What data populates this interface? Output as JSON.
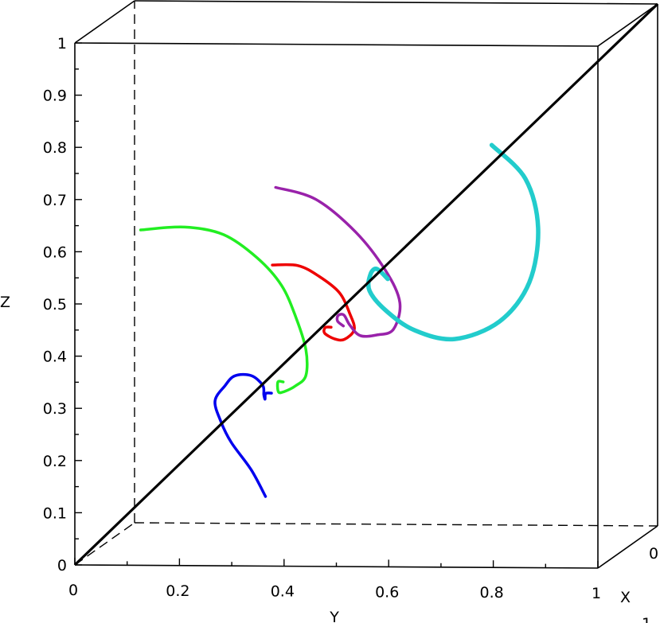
{
  "chart_data": {
    "type": "line",
    "projection": "3d",
    "title": "",
    "xlabel": "X",
    "ylabel": "Y",
    "zlabel": "Z",
    "xlim": [
      0,
      1
    ],
    "ylim": [
      0,
      1
    ],
    "zlim": [
      0,
      1
    ],
    "grid": false,
    "y_ticks": [
      "0",
      "0.2",
      "0.4",
      "0.6",
      "0.8",
      "1"
    ],
    "z_ticks": [
      "0",
      "0.1",
      "0.2",
      "0.3",
      "0.4",
      "0.5",
      "0.6",
      "0.7",
      "0.8",
      "0.9",
      "1"
    ],
    "x_ticks": [
      "0"
    ],
    "x_label_fragment": "1",
    "diagonal": {
      "color": "#000000",
      "points": [
        [
          0,
          0,
          0
        ],
        [
          1,
          1,
          1
        ]
      ]
    },
    "series": [
      {
        "color": "#0000ee",
        "points": [
          [
            0.04,
            0.36,
            0.13
          ],
          [
            0.06,
            0.33,
            0.18
          ],
          [
            0.08,
            0.29,
            0.23
          ],
          [
            0.08,
            0.27,
            0.27
          ],
          [
            0.07,
            0.26,
            0.31
          ],
          [
            0.06,
            0.28,
            0.34
          ],
          [
            0.05,
            0.3,
            0.36
          ],
          [
            0.06,
            0.33,
            0.36
          ],
          [
            0.08,
            0.35,
            0.34
          ],
          [
            0.1,
            0.35,
            0.32
          ],
          [
            0.12,
            0.35,
            0.31
          ],
          [
            0.13,
            0.35,
            0.32
          ],
          [
            0.14,
            0.36,
            0.32
          ]
        ]
      },
      {
        "color": "#22ee22",
        "points": [
          [
            0.4,
            0.08,
            0.61
          ],
          [
            0.35,
            0.17,
            0.62
          ],
          [
            0.3,
            0.25,
            0.61
          ],
          [
            0.25,
            0.32,
            0.57
          ],
          [
            0.22,
            0.37,
            0.52
          ],
          [
            0.2,
            0.4,
            0.46
          ],
          [
            0.19,
            0.42,
            0.4
          ],
          [
            0.19,
            0.42,
            0.35
          ],
          [
            0.19,
            0.4,
            0.33
          ],
          [
            0.18,
            0.38,
            0.32
          ],
          [
            0.17,
            0.37,
            0.32
          ],
          [
            0.16,
            0.37,
            0.34
          ],
          [
            0.16,
            0.38,
            0.34
          ]
        ]
      },
      {
        "color": "#ee0000",
        "points": [
          [
            0.33,
            0.34,
            0.55
          ],
          [
            0.32,
            0.39,
            0.55
          ],
          [
            0.32,
            0.43,
            0.53
          ],
          [
            0.31,
            0.47,
            0.5
          ],
          [
            0.31,
            0.49,
            0.46
          ],
          [
            0.3,
            0.5,
            0.43
          ],
          [
            0.31,
            0.48,
            0.41
          ],
          [
            0.32,
            0.46,
            0.41
          ],
          [
            0.33,
            0.44,
            0.42
          ],
          [
            0.34,
            0.44,
            0.43
          ],
          [
            0.35,
            0.45,
            0.43
          ]
        ]
      },
      {
        "color": "#9922aa",
        "points": [
          [
            0.56,
            0.32,
            0.68
          ],
          [
            0.53,
            0.4,
            0.66
          ],
          [
            0.5,
            0.48,
            0.6
          ],
          [
            0.47,
            0.54,
            0.53
          ],
          [
            0.45,
            0.57,
            0.47
          ],
          [
            0.43,
            0.56,
            0.42
          ],
          [
            0.42,
            0.53,
            0.41
          ],
          [
            0.4,
            0.5,
            0.41
          ],
          [
            0.4,
            0.48,
            0.43
          ],
          [
            0.39,
            0.47,
            0.45
          ],
          [
            0.38,
            0.46,
            0.45
          ],
          [
            0.37,
            0.46,
            0.44
          ],
          [
            0.38,
            0.47,
            0.43
          ]
        ]
      },
      {
        "color": "#22cccc",
        "points": [
          [
            0.85,
            0.7,
            0.74
          ],
          [
            0.8,
            0.77,
            0.68
          ],
          [
            0.75,
            0.8,
            0.59
          ],
          [
            0.69,
            0.79,
            0.49
          ],
          [
            0.63,
            0.74,
            0.42
          ],
          [
            0.58,
            0.66,
            0.39
          ],
          [
            0.53,
            0.59,
            0.41
          ],
          [
            0.49,
            0.54,
            0.45
          ],
          [
            0.47,
            0.51,
            0.49
          ],
          [
            0.48,
            0.51,
            0.52
          ],
          [
            0.5,
            0.52,
            0.53
          ],
          [
            0.51,
            0.54,
            0.51
          ]
        ]
      }
    ]
  }
}
